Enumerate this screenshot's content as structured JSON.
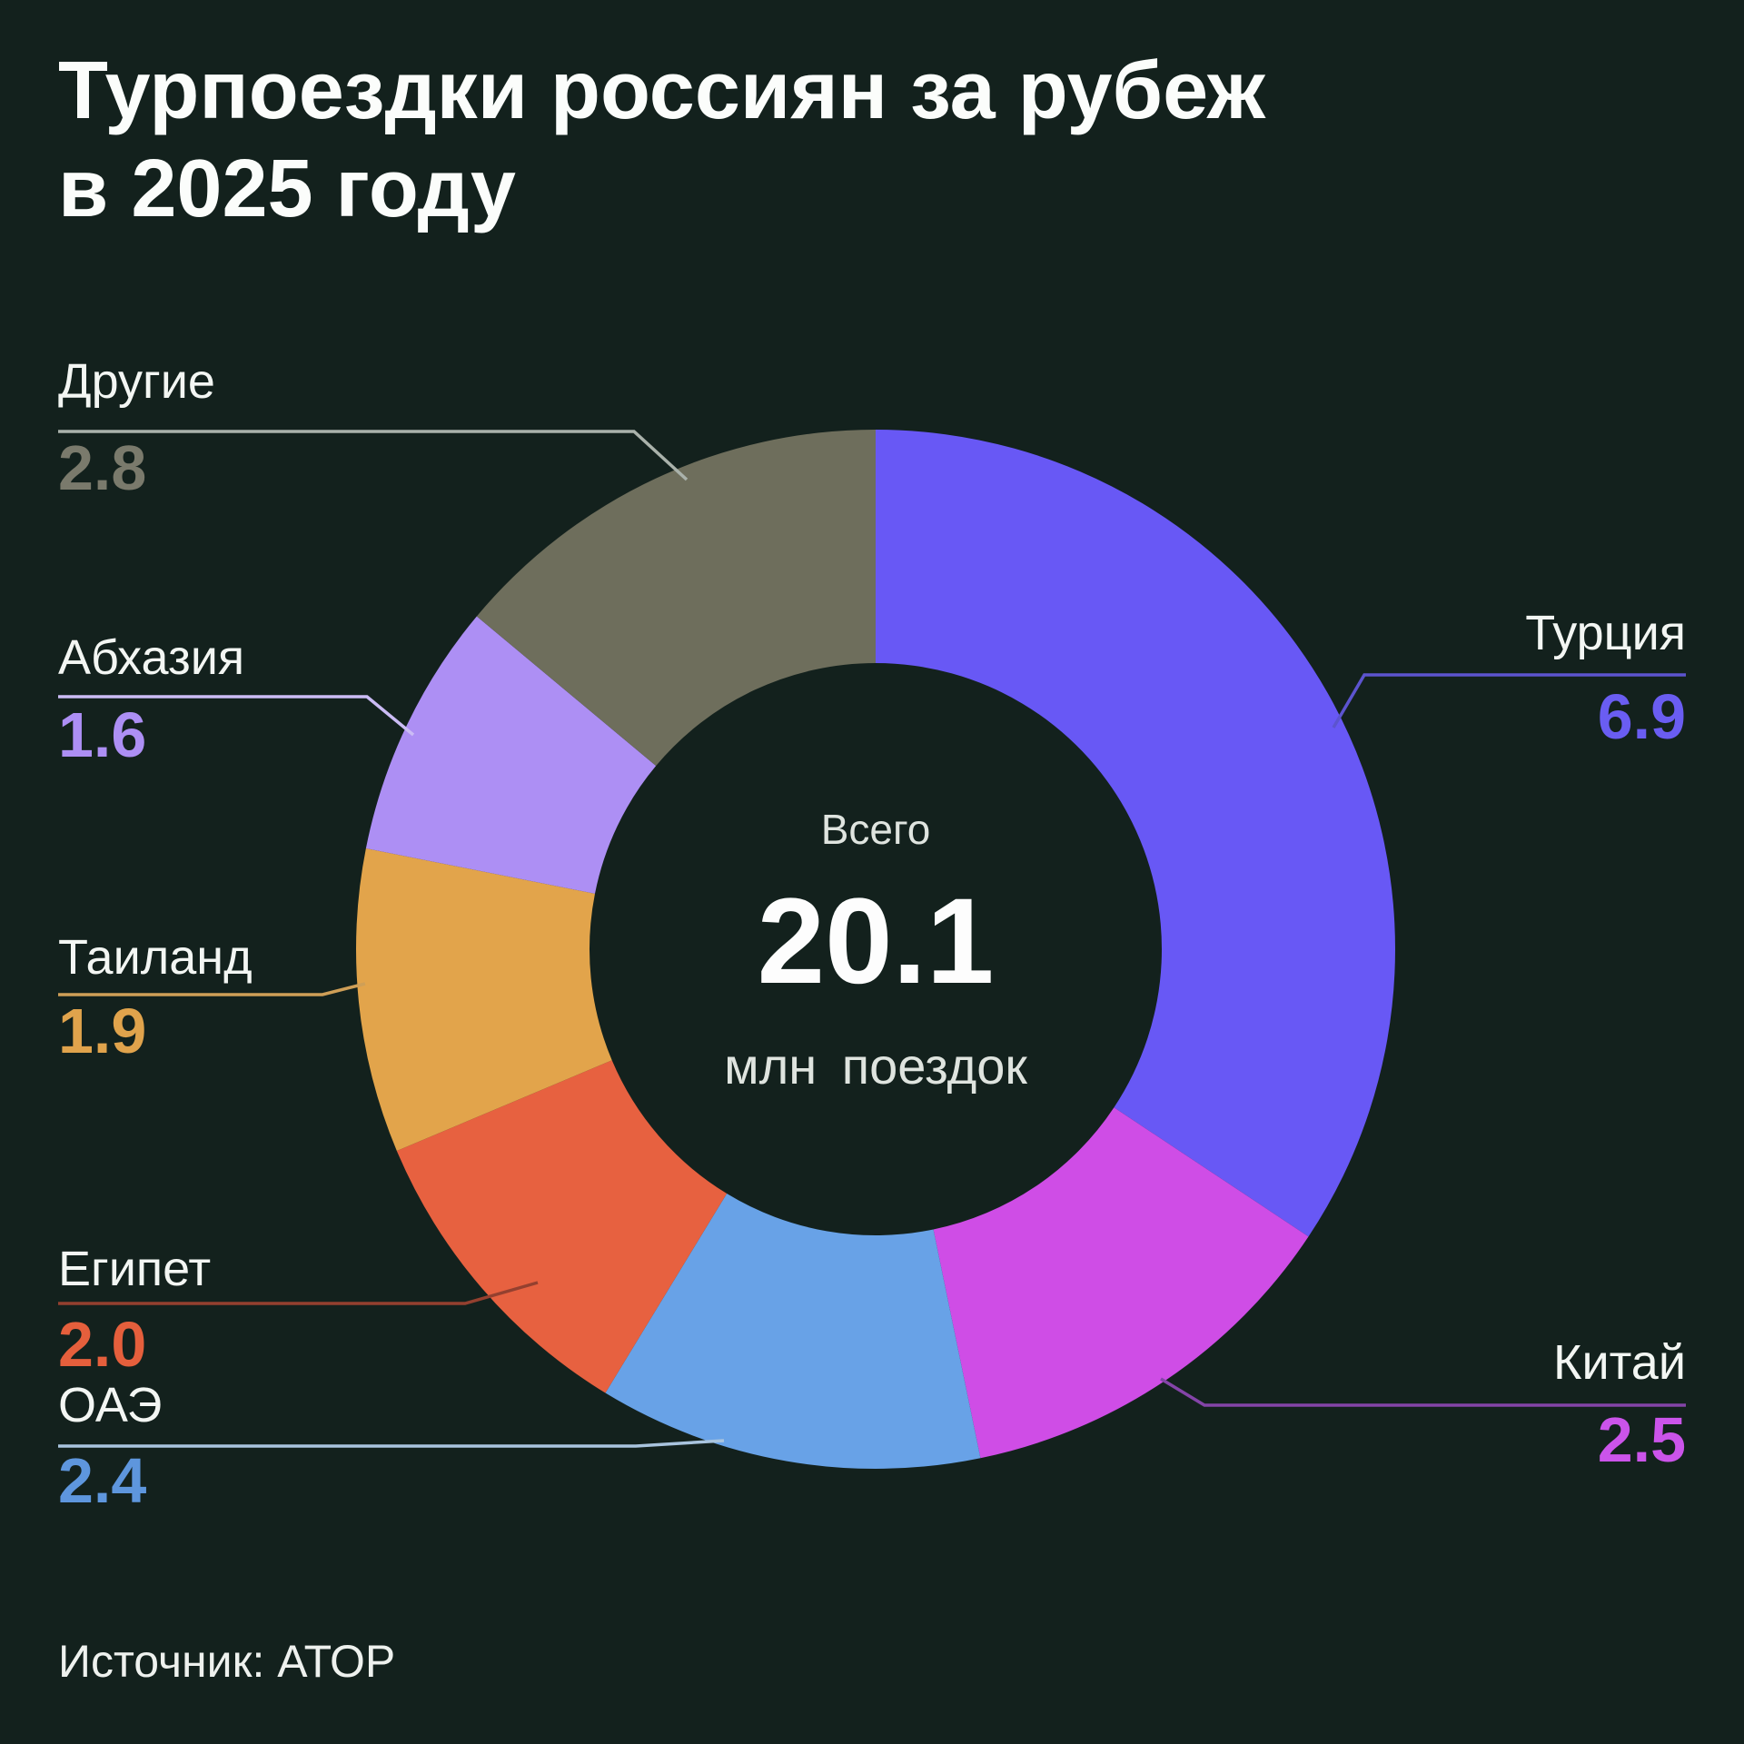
{
  "page": {
    "title_line1": "Турпоездки россиян за рубеж",
    "title_line2": "в 2025 году",
    "source": "Источник: АТОР",
    "background_color": "#13211d"
  },
  "chart_data": {
    "type": "pie",
    "variant": "donut",
    "title": "Турпоездки россиян за рубеж в 2025 году",
    "center_label": "Всего",
    "total_display": "20.1",
    "total_value": 20.1,
    "unit": "млн поездок",
    "start_angle_deg": 0,
    "direction": "clockwise",
    "legend_position": "callout-labels",
    "slices": [
      {
        "key": "turkey",
        "label": "Турция",
        "value": 6.9,
        "display": "6.9",
        "color": "#6858f5",
        "value_color": "#6a5df2",
        "leader_color": "#5c54cf",
        "side": "right"
      },
      {
        "key": "china",
        "label": "Китай",
        "value": 2.5,
        "display": "2.5",
        "color": "#cf4de6",
        "value_color": "#cb54ea",
        "leader_color": "#8444a8",
        "side": "right"
      },
      {
        "key": "uae",
        "label": "ОАЭ",
        "value": 2.4,
        "display": "2.4",
        "color": "#68a2e7",
        "value_color": "#5e96dd",
        "leader_color": "#a9c4de",
        "side": "left"
      },
      {
        "key": "egypt",
        "label": "Египет",
        "value": 2.0,
        "display": "2.0",
        "color": "#e76140",
        "value_color": "#e55f3c",
        "leader_color": "#94402f",
        "side": "left"
      },
      {
        "key": "thailand",
        "label": "Таиланд",
        "value": 1.9,
        "display": "1.9",
        "color": "#e2a44b",
        "value_color": "#e0a34c",
        "leader_color": "#cf9f57",
        "side": "left"
      },
      {
        "key": "abkhazia",
        "label": "Абхазия",
        "value": 1.6,
        "display": "1.6",
        "color": "#ad8ff4",
        "value_color": "#ad8ff4",
        "leader_color": "#cbbcf5",
        "side": "left"
      },
      {
        "key": "others",
        "label": "Другие",
        "value": 2.8,
        "display": "2.8",
        "color": "#6e6e5c",
        "value_color": "#7a7a6c",
        "leader_color": "#aab2ab",
        "side": "left"
      }
    ]
  }
}
